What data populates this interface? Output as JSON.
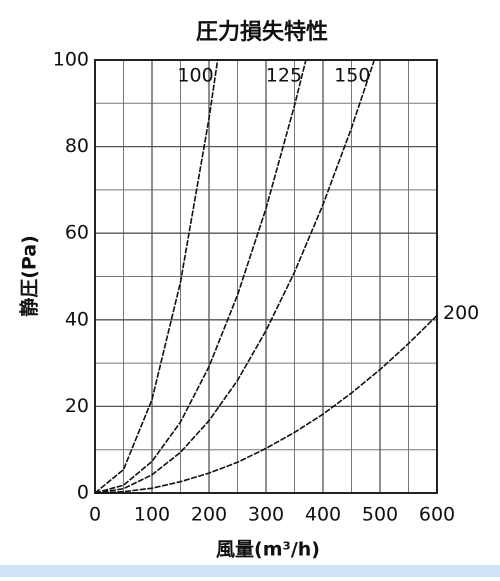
{
  "chart_data": {
    "type": "line",
    "title": "圧力損失特性",
    "xlabel": "風量(m³/h)",
    "ylabel": "静圧(Pa)",
    "xlim": [
      0,
      600
    ],
    "xticks": [
      0,
      100,
      200,
      300,
      400,
      500,
      600
    ],
    "xminorticks": [
      50,
      150,
      250,
      350,
      450,
      550
    ],
    "ylim": [
      0,
      100
    ],
    "yticks": [
      0,
      20,
      40,
      60,
      80,
      100
    ],
    "yminorticks": [
      10,
      30,
      50,
      70,
      90
    ],
    "grid": true,
    "series": [
      {
        "name": "100",
        "color": "#111111",
        "x": [
          0,
          50,
          100,
          150,
          200,
          215
        ],
        "values": [
          0,
          5.4,
          21.6,
          48.7,
          86.5,
          100
        ]
      },
      {
        "name": "125",
        "color": "#111111",
        "x": [
          0,
          50,
          100,
          150,
          200,
          250,
          300,
          350,
          370
        ],
        "values": [
          0,
          1.8,
          7.3,
          16.4,
          29.2,
          45.7,
          65.7,
          89.5,
          100
        ]
      },
      {
        "name": "150",
        "color": "#111111",
        "x": [
          0,
          50,
          100,
          150,
          200,
          250,
          300,
          350,
          400,
          450,
          490
        ],
        "values": [
          0,
          1.0,
          4.2,
          9.4,
          16.7,
          26,
          37.5,
          51,
          66.6,
          84.3,
          100
        ]
      },
      {
        "name": "200",
        "color": "#111111",
        "x": [
          0,
          50,
          100,
          150,
          200,
          250,
          300,
          350,
          400,
          450,
          500,
          550,
          600
        ],
        "values": [
          0,
          0.3,
          1.1,
          2.6,
          4.6,
          7.1,
          10.3,
          14,
          18.2,
          23.1,
          28.5,
          34.5,
          41
        ]
      }
    ]
  }
}
